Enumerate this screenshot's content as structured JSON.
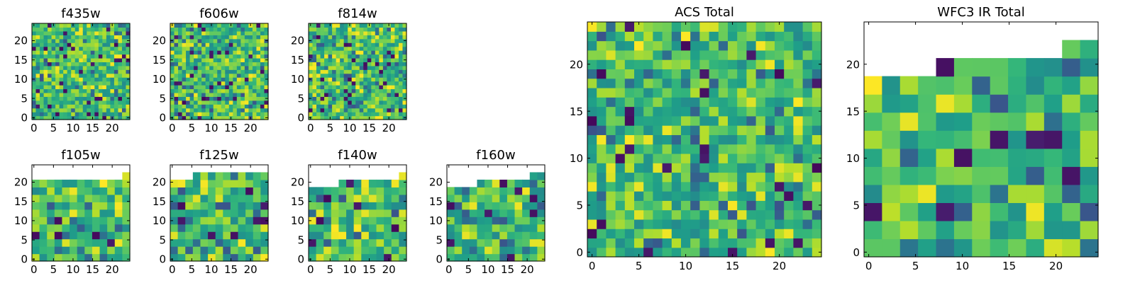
{
  "chart_data": [
    {
      "type": "heatmap",
      "title": "f435w",
      "grid": [
        25,
        25
      ],
      "rows_filled": 25,
      "xticks": [
        "0",
        "5",
        "10",
        "15",
        "20"
      ],
      "yticks": [
        "0",
        "5",
        "10",
        "15",
        "20"
      ],
      "xlim": [
        0,
        25
      ],
      "ylim": [
        0,
        25
      ],
      "seed": 11
    },
    {
      "type": "heatmap",
      "title": "f606w",
      "grid": [
        25,
        25
      ],
      "rows_filled": 25,
      "xticks": [
        "0",
        "5",
        "10",
        "15",
        "20"
      ],
      "yticks": [
        "0",
        "5",
        "10",
        "15",
        "20"
      ],
      "xlim": [
        0,
        25
      ],
      "ylim": [
        0,
        25
      ],
      "seed": 23
    },
    {
      "type": "heatmap",
      "title": "f814w",
      "grid": [
        25,
        25
      ],
      "rows_filled": 25,
      "xticks": [
        "0",
        "5",
        "10",
        "15",
        "20"
      ],
      "yticks": [
        "0",
        "5",
        "10",
        "15",
        "20"
      ],
      "xlim": [
        0,
        25
      ],
      "ylim": [
        0,
        25
      ],
      "seed": 37
    },
    {
      "type": "heatmap",
      "title": "f105w",
      "grid": [
        13,
        13
      ],
      "rows_filled": [
        11,
        11,
        11,
        11,
        11,
        11,
        11,
        11,
        11,
        11,
        11,
        11,
        12
      ],
      "xticks": [
        "0",
        "5",
        "10",
        "15",
        "20"
      ],
      "yticks": [
        "0",
        "5",
        "10",
        "15",
        "20"
      ],
      "xlim": [
        0,
        25
      ],
      "ylim": [
        0,
        25
      ],
      "seed": 41
    },
    {
      "type": "heatmap",
      "title": "f125w",
      "grid": [
        13,
        13
      ],
      "rows_filled": [
        11,
        11,
        11,
        12,
        12,
        12,
        12,
        12,
        12,
        12,
        12,
        12,
        12
      ],
      "xticks": [
        "0",
        "5",
        "10",
        "15",
        "20"
      ],
      "yticks": [
        "0",
        "5",
        "10",
        "15",
        "20"
      ],
      "xlim": [
        0,
        25
      ],
      "ylim": [
        0,
        25
      ],
      "seed": 53
    },
    {
      "type": "heatmap",
      "title": "f140w",
      "grid": [
        13,
        13
      ],
      "rows_filled": [
        10,
        10,
        10,
        10,
        11,
        11,
        11,
        11,
        11,
        11,
        11,
        11,
        12
      ],
      "xticks": [
        "0",
        "5",
        "10",
        "15",
        "20"
      ],
      "yticks": [
        "0",
        "5",
        "10",
        "15",
        "20"
      ],
      "xlim": [
        0,
        25
      ],
      "ylim": [
        0,
        25
      ],
      "seed": 67
    },
    {
      "type": "heatmap",
      "title": "f160w",
      "grid": [
        13,
        13
      ],
      "rows_filled": [
        10,
        10,
        10,
        10,
        11,
        11,
        11,
        11,
        11,
        11,
        11,
        12,
        12
      ],
      "xticks": [
        "0",
        "5",
        "10",
        "15",
        "20"
      ],
      "yticks": [
        "0",
        "5",
        "10",
        "15",
        "20"
      ],
      "xlim": [
        0,
        25
      ],
      "ylim": [
        0,
        25
      ],
      "seed": 79
    },
    {
      "type": "heatmap",
      "title": "ACS Total",
      "grid": [
        25,
        25
      ],
      "rows_filled": 25,
      "xticks": [
        "0",
        "5",
        "10",
        "15",
        "20"
      ],
      "yticks": [
        "0",
        "5",
        "10",
        "15",
        "20"
      ],
      "xlim": [
        0,
        25
      ],
      "ylim": [
        0,
        25
      ],
      "seed": 97
    },
    {
      "type": "heatmap",
      "title": "WFC3 IR Total",
      "grid": [
        13,
        13
      ],
      "rows_filled": [
        10,
        10,
        10,
        10,
        11,
        11,
        11,
        11,
        11,
        11,
        11,
        12,
        12
      ],
      "xticks": [
        "0",
        "5",
        "10",
        "15",
        "20"
      ],
      "yticks": [
        "0",
        "5",
        "10",
        "15",
        "20"
      ],
      "xlim": [
        0,
        25
      ],
      "ylim": [
        0,
        25
      ],
      "seed": 103
    }
  ]
}
